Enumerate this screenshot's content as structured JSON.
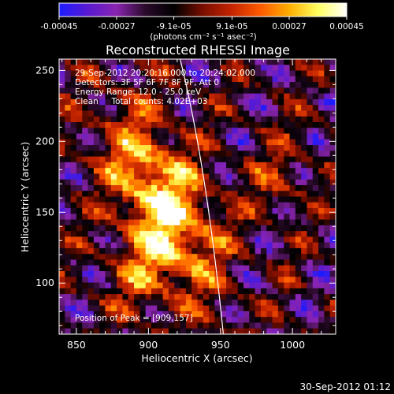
{
  "chart_data": {
    "type": "heatmap",
    "title": "Reconstructed RHESSI Image",
    "xlabel": "Heliocentric X (arcsec)",
    "ylabel": "Heliocentric Y (arcsec)",
    "xlim": [
      838,
      1030
    ],
    "ylim": [
      64,
      258
    ],
    "xticks": [
      850,
      900,
      950,
      1000
    ],
    "yticks": [
      100,
      150,
      200,
      250
    ],
    "colorbar": {
      "ticks": [
        "-0.00045",
        "-0.00027",
        "-9.1e-05",
        "9.1e-05",
        "0.00027",
        "0.00045"
      ],
      "range": [
        -0.00045,
        0.00045
      ],
      "unit_label": "(photons cm⁻² s⁻¹ asec⁻²)",
      "colormap": [
        "#1c1cff",
        "#5a1ad2",
        "#8a24b0",
        "#2a0a2a",
        "#000000",
        "#7a0e00",
        "#c42400",
        "#ff5a00",
        "#ffae00",
        "#ffff60",
        "#ffffff"
      ]
    },
    "annotations": [
      "29-Sep-2012 20:20:16.000 to 20:24:02.000",
      "Detectors: 3F 5F 6F 7F 8F 9F, Att 0",
      "Energy Range: 12.0 - 25.0 keV",
      "Clean     Total counts: 4.02E+03"
    ],
    "peak_label": "Position of Peak = [909,157]",
    "peak": [
      909,
      157
    ],
    "limb_curve": [
      [
        922,
        258
      ],
      [
        940,
        185
      ],
      [
        952,
        64
      ]
    ],
    "limb_color": "#ffffff"
  },
  "footer_timestamp": "30-Sep-2012 01:12"
}
